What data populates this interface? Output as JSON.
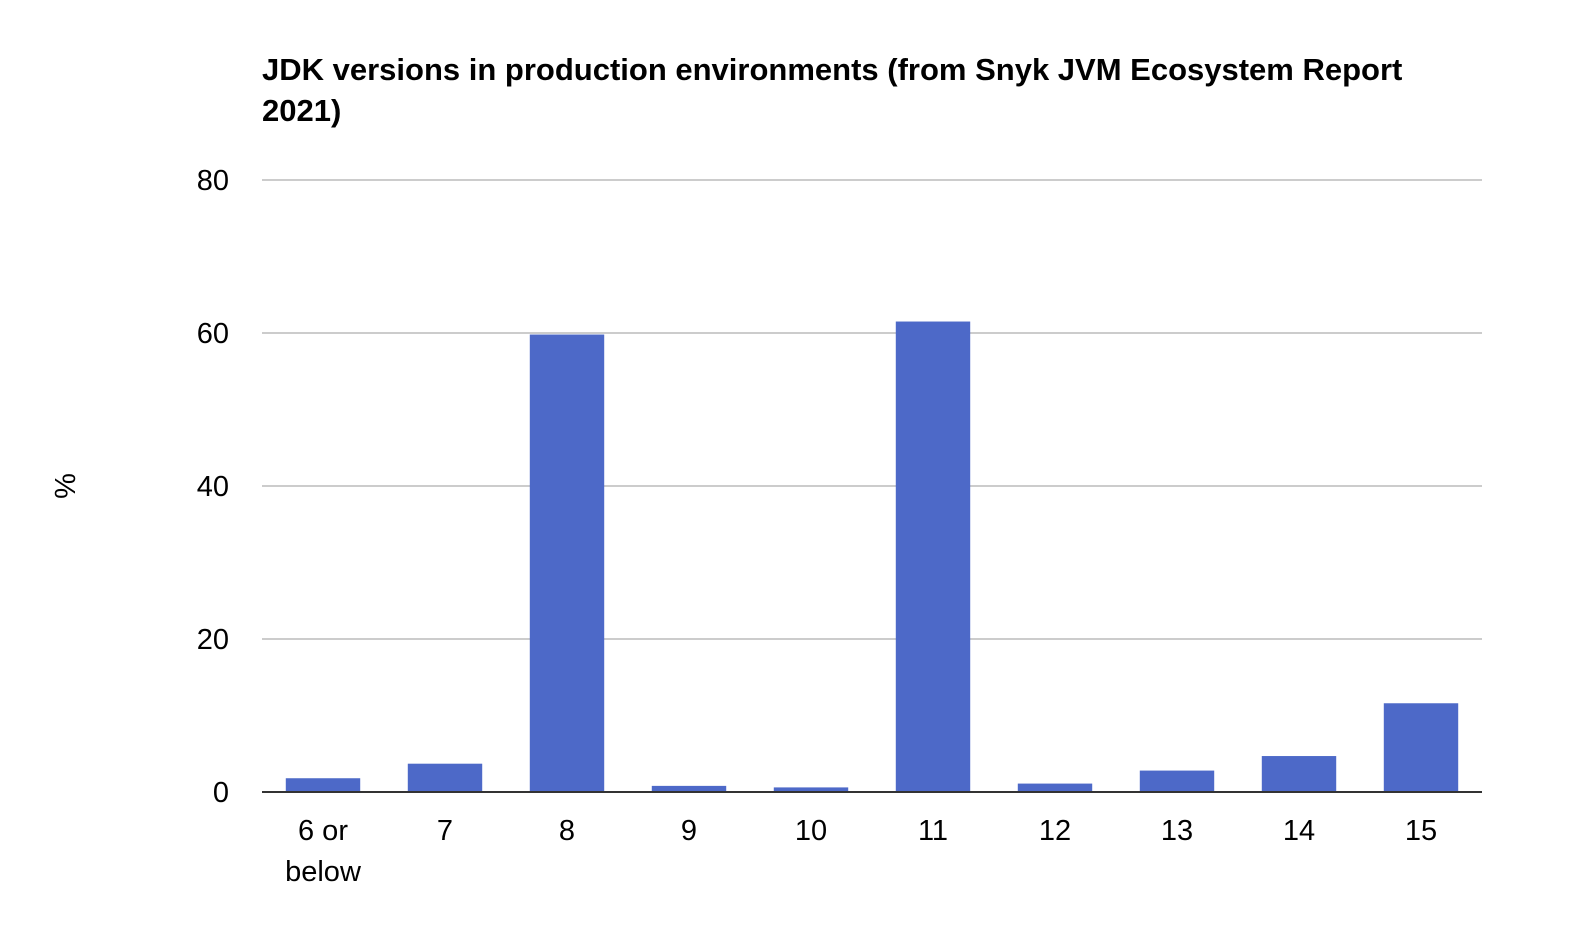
{
  "chart_data": {
    "type": "bar",
    "title_lines": [
      "JDK versions in production environments (from Snyk JVM Ecosystem Report",
      "2021)"
    ],
    "ylabel": "%",
    "xlabel": "",
    "categories": [
      [
        "6 or",
        "below"
      ],
      [
        "7"
      ],
      [
        "8"
      ],
      [
        "9"
      ],
      [
        "10"
      ],
      [
        "11"
      ],
      [
        "12"
      ],
      [
        "13"
      ],
      [
        "14"
      ],
      [
        "15"
      ]
    ],
    "values": [
      1.8,
      3.7,
      59.8,
      0.8,
      0.6,
      61.5,
      1.1,
      2.8,
      4.7,
      11.6
    ],
    "ylim": [
      0,
      80
    ],
    "yticks": [
      "0",
      "20",
      "40",
      "60",
      "80"
    ],
    "grid": true,
    "legend": "none",
    "bar_color": "#4d69c8"
  }
}
